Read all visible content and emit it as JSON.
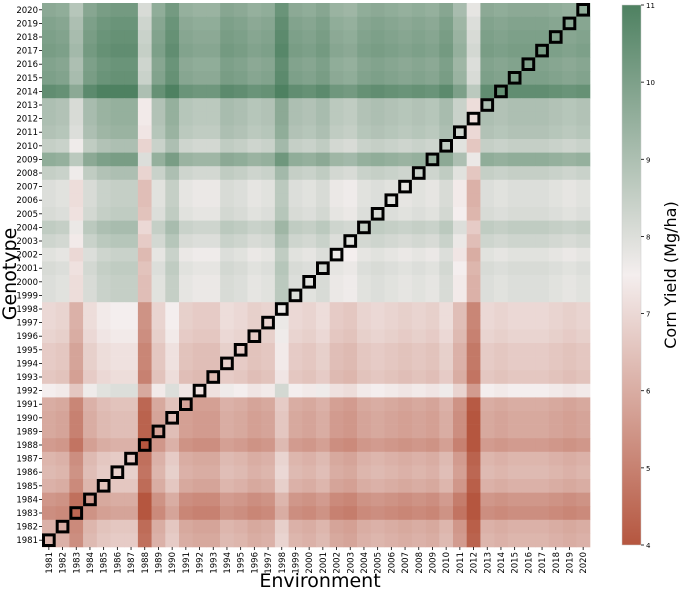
{
  "chart_data": {
    "type": "heatmap",
    "xlabel": "Environment",
    "ylabel": "Genotype",
    "x": [
      "1981",
      "1982",
      "1983",
      "1984",
      "1985",
      "1986",
      "1987",
      "1988",
      "1989",
      "1990",
      "1991",
      "1992",
      "1993",
      "1994",
      "1995",
      "1996",
      "1997",
      "1998",
      "1999",
      "2000",
      "2001",
      "2002",
      "2003",
      "2004",
      "2005",
      "2006",
      "2007",
      "2008",
      "2009",
      "2010",
      "2011",
      "2012",
      "2013",
      "2014",
      "2015",
      "2016",
      "2017",
      "2018",
      "2019",
      "2020"
    ],
    "y": [
      "2020",
      "2019",
      "2018",
      "2017",
      "2016",
      "2015",
      "2014",
      "2013",
      "2012",
      "2011",
      "2010",
      "2009",
      "2008",
      "2007",
      "2006",
      "2005",
      "2004",
      "2003",
      "2002",
      "2001",
      "2000",
      "1999",
      "1998",
      "1997",
      "1996",
      "1995",
      "1994",
      "1993",
      "1992",
      "1991",
      "1990",
      "1989",
      "1988",
      "1987",
      "1986",
      "1985",
      "1984",
      "1983",
      "1982",
      "1981"
    ],
    "genotype_base": [
      9.6,
      9.8,
      9.9,
      10.0,
      9.8,
      9.9,
      10.5,
      8.9,
      8.9,
      8.8,
      8.4,
      9.5,
      8.4,
      7.9,
      7.9,
      8.0,
      8.5,
      8.2,
      7.8,
      8.0,
      7.9,
      7.9,
      6.9,
      6.9,
      6.8,
      6.6,
      6.6,
      6.5,
      7.4,
      5.9,
      5.8,
      5.8,
      5.5,
      6.1,
      6.2,
      6.0,
      5.4,
      5.2,
      6.0,
      6.1
    ],
    "environment_effect": [
      0.1,
      0.0,
      -0.8,
      0.2,
      0.5,
      0.6,
      0.6,
      -1.5,
      0.0,
      0.6,
      -0.1,
      -0.2,
      -0.2,
      0.2,
      0.1,
      -0.1,
      0.0,
      0.8,
      0.1,
      0.0,
      0.2,
      -0.2,
      -0.3,
      0.0,
      0.1,
      0.0,
      -0.1,
      0.0,
      -0.1,
      0.2,
      -0.5,
      -1.8,
      0.1,
      0.0,
      0.1,
      0.1,
      0.1,
      0.0,
      -0.1,
      0.0
    ],
    "highlighted_cells": "diagonal (genotype year = environment year)",
    "colorbar": {
      "label": "Corn Yield (Mg/ha)",
      "min": 4,
      "max": 11,
      "ticks": [
        "4",
        "5",
        "6",
        "7",
        "8",
        "9",
        "10",
        "11"
      ],
      "low_color": "#b5563f",
      "mid_color": "#f4eeee",
      "high_color": "#4e8161"
    }
  }
}
